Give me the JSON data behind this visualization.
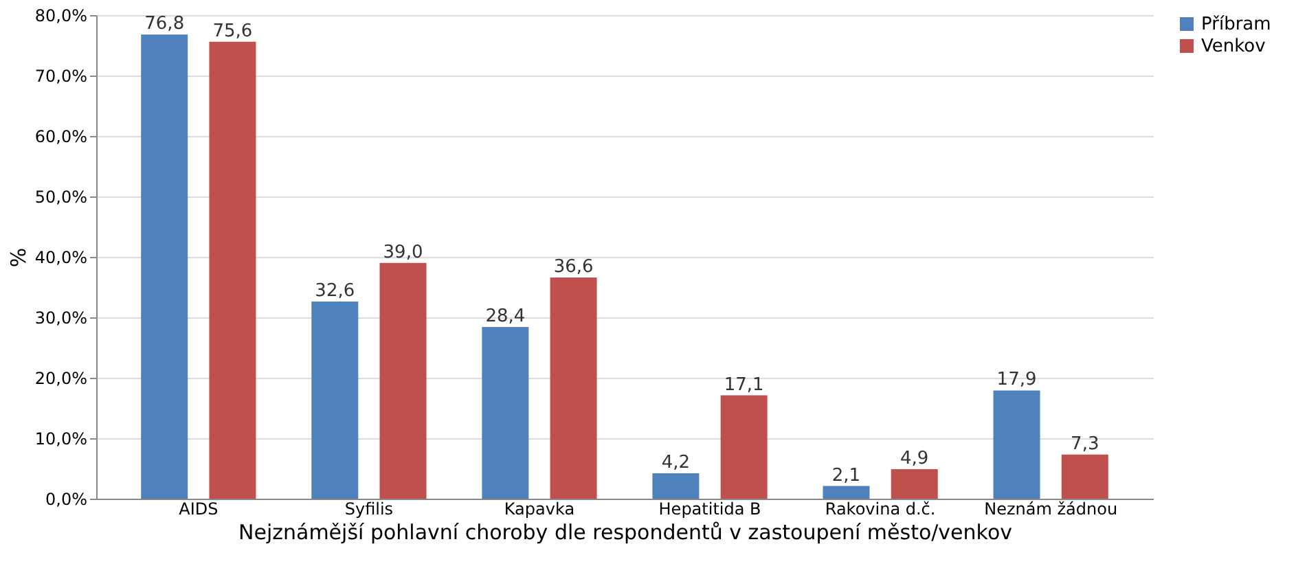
{
  "chart_data": {
    "type": "bar",
    "xlabel": "Nejznámější pohlavní choroby dle respondentů v zastoupení město/venkov",
    "ylabel": "%",
    "categories": [
      "AIDS",
      "Syfilis",
      "Kapavka",
      "Hepatitida B",
      "Rakovina d.č.",
      "Neznám žádnou"
    ],
    "series": [
      {
        "name": "Příbram",
        "color": "#4f81bd",
        "values": [
          76.8,
          32.6,
          28.4,
          4.2,
          2.1,
          17.9
        ],
        "value_labels": [
          "76,8",
          "32,6",
          "28,4",
          "4,2",
          "2,1",
          "17,9"
        ]
      },
      {
        "name": "Venkov",
        "color": "#c0504d",
        "values": [
          75.6,
          39.0,
          36.6,
          17.1,
          4.9,
          7.3
        ],
        "value_labels": [
          "75,6",
          "39,0",
          "36,6",
          "17,1",
          "4,9",
          "7,3"
        ]
      }
    ],
    "ylim": [
      0,
      80
    ],
    "yticks": [
      {
        "value": 0,
        "label": "0,0%"
      },
      {
        "value": 10,
        "label": "10,0%"
      },
      {
        "value": 20,
        "label": "20,0%"
      },
      {
        "value": 30,
        "label": "30,0%"
      },
      {
        "value": 40,
        "label": "40,0%"
      },
      {
        "value": 50,
        "label": "50,0%"
      },
      {
        "value": 60,
        "label": "60,0%"
      },
      {
        "value": 70,
        "label": "70,0%"
      },
      {
        "value": 80,
        "label": "80,0%"
      }
    ],
    "grid": "y",
    "legend": "right"
  }
}
